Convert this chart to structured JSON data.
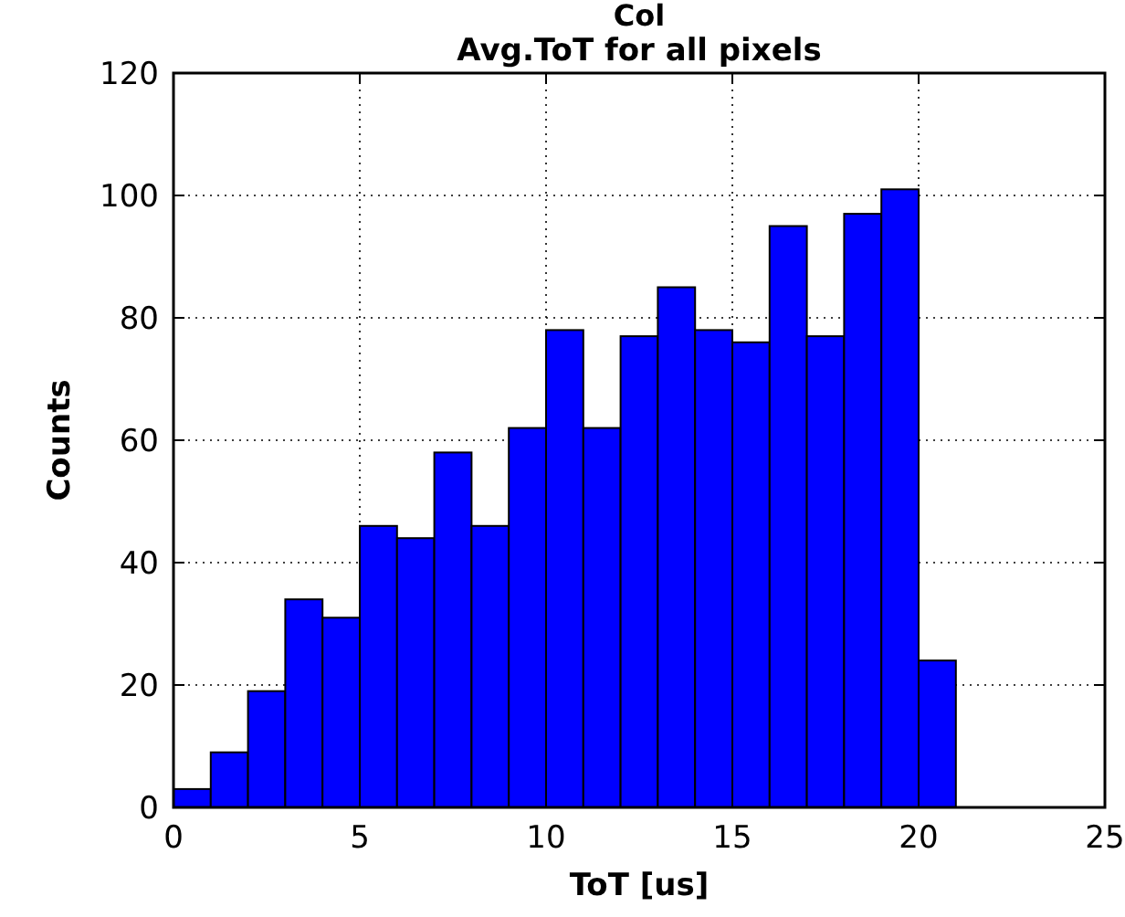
{
  "chart_data": {
    "type": "histogram",
    "title": "Col",
    "subtitle": "Avg.ToT for all pixels",
    "xlabel": "ToT [us]",
    "ylabel": "Counts",
    "bins": [
      0,
      1,
      2,
      3,
      4,
      5,
      6,
      7,
      8,
      9,
      10,
      11,
      12,
      13,
      14,
      15,
      16,
      17,
      18,
      19,
      20,
      21
    ],
    "values": [
      3,
      9,
      19,
      34,
      31,
      46,
      44,
      58,
      46,
      62,
      78,
      62,
      77,
      85,
      78,
      76,
      95,
      77,
      97,
      101,
      24
    ],
    "color": "#0000ff",
    "xlim": [
      0,
      25
    ],
    "xticks": [
      0,
      5,
      10,
      15,
      20,
      25
    ],
    "ylim": [
      0,
      120
    ],
    "yticks": [
      0,
      20,
      40,
      60,
      80,
      100,
      120
    ],
    "grid": true
  }
}
